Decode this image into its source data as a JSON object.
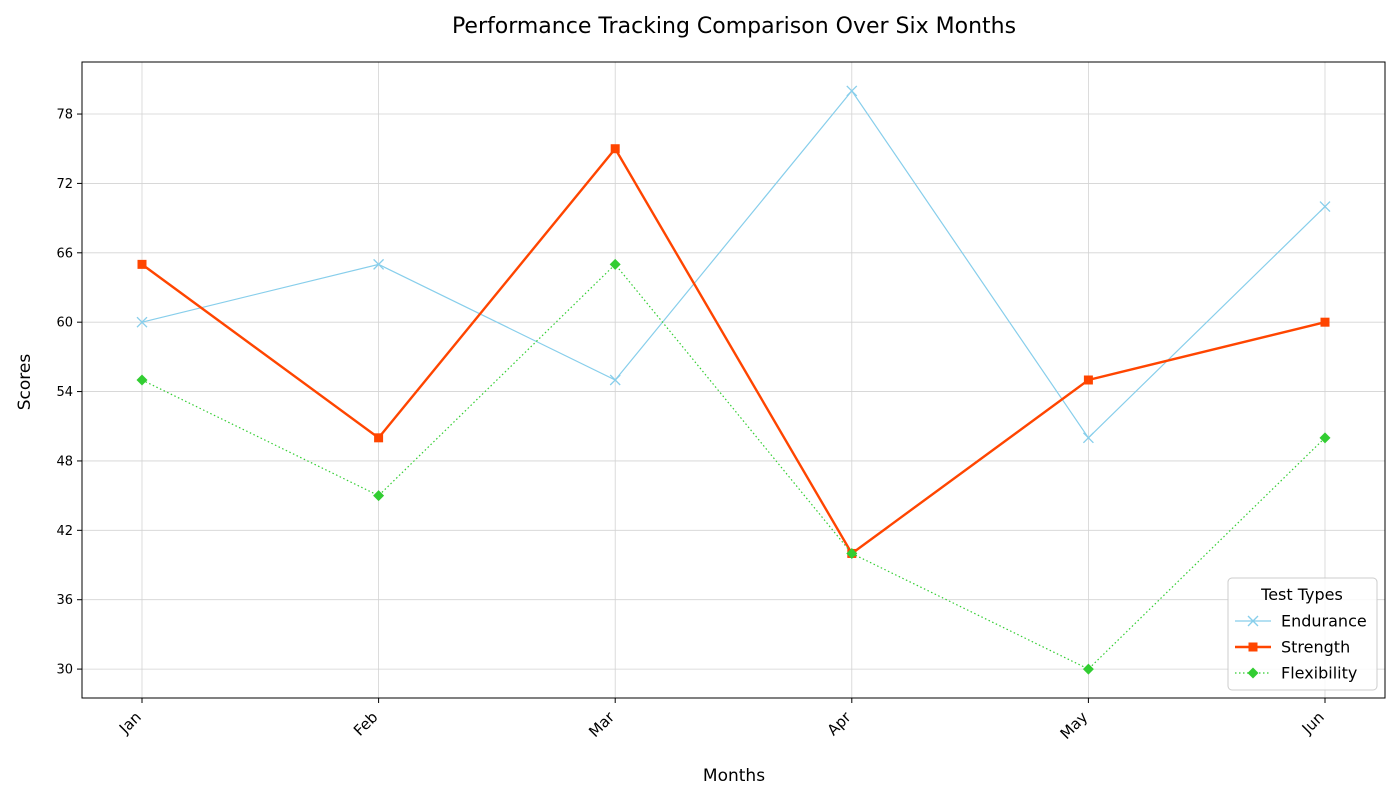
{
  "chart_data": {
    "type": "line",
    "title": "Performance Tracking Comparison Over Six Months",
    "xlabel": "Months",
    "ylabel": "Scores",
    "categories": [
      "Jan",
      "Feb",
      "Mar",
      "Apr",
      "May",
      "Jun"
    ],
    "ylim": [
      27.5,
      82.5
    ],
    "yticks": [
      30,
      36,
      42,
      48,
      54,
      60,
      66,
      72,
      78
    ],
    "grid": true,
    "legend": {
      "title": "Test Types",
      "placement": "lower-right"
    },
    "series": [
      {
        "name": "Endurance",
        "values": [
          60,
          65,
          55,
          80,
          50,
          70
        ],
        "color": "#87ceeb",
        "marker": "x",
        "line_style": "solid"
      },
      {
        "name": "Strength",
        "values": [
          65,
          50,
          75,
          40,
          55,
          60
        ],
        "color": "#ff4500",
        "marker": "square",
        "line_style": "solid"
      },
      {
        "name": "Flexibility",
        "values": [
          55,
          45,
          65,
          40,
          30,
          50
        ],
        "color": "#32cd32",
        "marker": "diamond",
        "line_style": "dotted"
      }
    ]
  }
}
